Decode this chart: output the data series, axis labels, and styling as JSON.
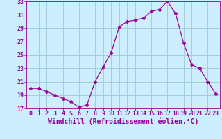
{
  "x": [
    0,
    1,
    2,
    3,
    4,
    5,
    6,
    7,
    8,
    9,
    10,
    11,
    12,
    13,
    14,
    15,
    16,
    17,
    18,
    19,
    20,
    21,
    22,
    23
  ],
  "y": [
    20.0,
    20.0,
    19.5,
    19.0,
    18.5,
    18.0,
    17.2,
    17.5,
    21.0,
    23.2,
    25.3,
    29.2,
    30.0,
    30.2,
    30.5,
    31.5,
    31.8,
    33.0,
    31.2,
    26.8,
    23.5,
    23.0,
    21.0,
    19.2
  ],
  "line_color": "#990099",
  "marker": "D",
  "marker_size": 2.5,
  "bg_color": "#cceeff",
  "grid_color": "#99cccc",
  "xlabel": "Windchill (Refroidissement éolien,°C)",
  "xlabel_color": "#990099",
  "tick_color": "#990099",
  "ylim": [
    17,
    33
  ],
  "yticks": [
    17,
    19,
    21,
    23,
    25,
    27,
    29,
    31,
    33
  ],
  "xticks": [
    0,
    1,
    2,
    3,
    4,
    5,
    6,
    7,
    8,
    9,
    10,
    11,
    12,
    13,
    14,
    15,
    16,
    17,
    18,
    19,
    20,
    21,
    22,
    23
  ],
  "xlabel_fontsize": 7,
  "tick_fontsize": 6
}
